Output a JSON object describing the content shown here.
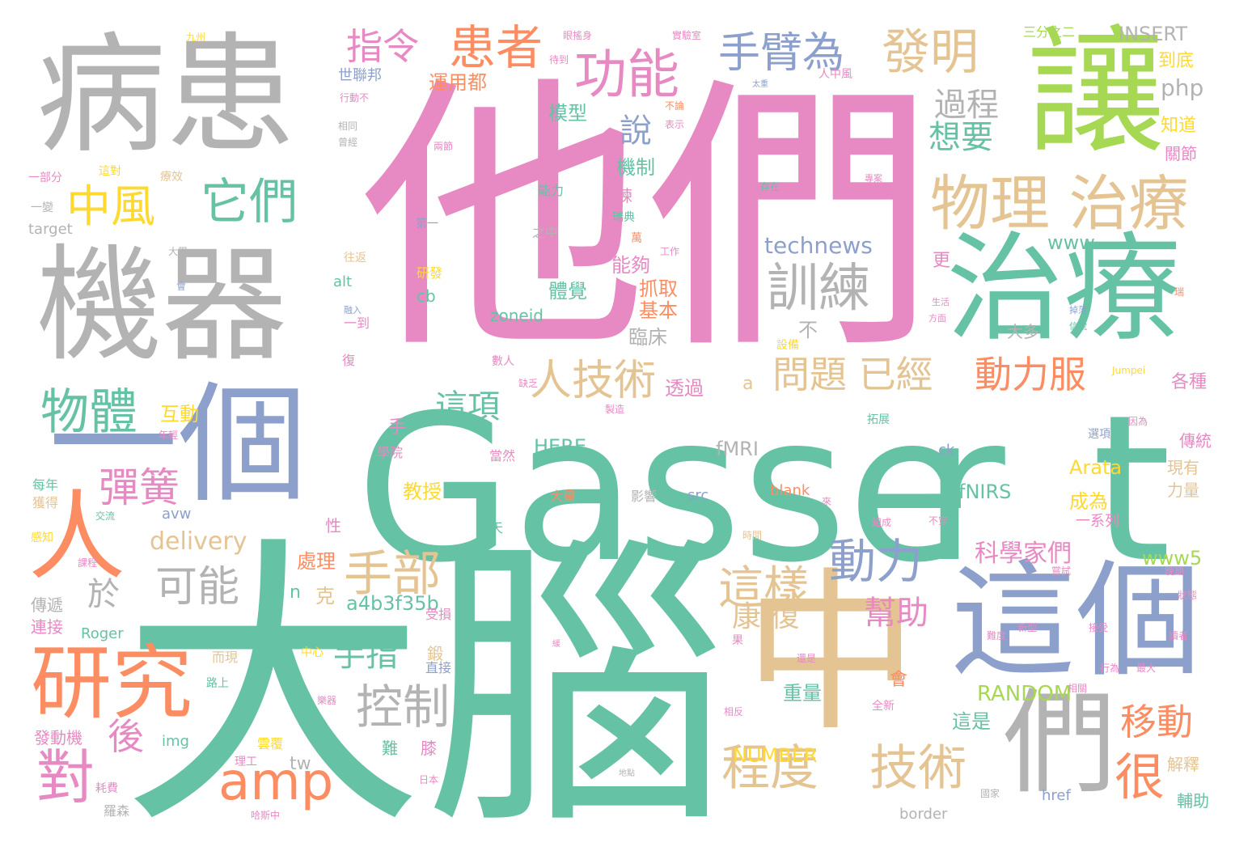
{
  "palette": {
    "teal": "#66c2a5",
    "pink": "#e78ac3",
    "gray": "#b3b3b3",
    "blue": "#8da0cb",
    "orange": "#fc8d62",
    "tan": "#e5c494",
    "green": "#a6d854",
    "yellow": "#ffd92f"
  },
  "words": [
    {
      "text": "Gasse",
      "color": "teal"
    },
    {
      "text": "t",
      "color": "teal"
    },
    {
      "text": "r",
      "color": "teal"
    },
    {
      "text": "他們",
      "color": "pink"
    },
    {
      "text": "大腦",
      "color": "teal"
    },
    {
      "text": "病患",
      "color": "gray"
    },
    {
      "text": "機器",
      "color": "gray"
    },
    {
      "text": "一個",
      "color": "blue"
    },
    {
      "text": "讓",
      "color": "green"
    },
    {
      "text": "治療",
      "color": "teal"
    },
    {
      "text": "這個",
      "color": "blue"
    },
    {
      "text": "中",
      "color": "tan"
    },
    {
      "text": "們",
      "color": "gray"
    },
    {
      "text": "人",
      "color": "orange"
    },
    {
      "text": "研究",
      "color": "orange"
    },
    {
      "text": "物理 治療",
      "color": "tan"
    },
    {
      "text": "發明",
      "color": "tan"
    },
    {
      "text": "患者",
      "color": "orange"
    },
    {
      "text": "功能",
      "color": "pink"
    },
    {
      "text": "手臂為",
      "color": "blue"
    },
    {
      "text": "指令",
      "color": "pink"
    },
    {
      "text": "中風",
      "color": "yellow"
    },
    {
      "text": "它們",
      "color": "teal"
    },
    {
      "text": "訓練",
      "color": "gray"
    },
    {
      "text": "人技術",
      "color": "tan"
    },
    {
      "text": "物體",
      "color": "teal"
    },
    {
      "text": "問題 已經",
      "color": "tan"
    },
    {
      "text": "動力服",
      "color": "orange"
    },
    {
      "text": "手部",
      "color": "tan"
    },
    {
      "text": "可能",
      "color": "gray"
    },
    {
      "text": "動力",
      "color": "blue"
    },
    {
      "text": "這樣",
      "color": "tan"
    },
    {
      "text": "控制",
      "color": "gray"
    },
    {
      "text": "程度",
      "color": "tan"
    },
    {
      "text": "技術",
      "color": "tan"
    },
    {
      "text": "amp",
      "color": "orange"
    },
    {
      "text": "手指",
      "color": "teal"
    },
    {
      "text": "移動",
      "color": "orange"
    },
    {
      "text": "很",
      "color": "orange"
    },
    {
      "text": "對",
      "color": "pink"
    },
    {
      "text": "後",
      "color": "pink"
    },
    {
      "text": "彈簧",
      "color": "pink"
    },
    {
      "text": "於",
      "color": "gray"
    },
    {
      "text": "這項",
      "color": "teal"
    },
    {
      "text": "過程",
      "color": "gray"
    },
    {
      "text": "想要",
      "color": "teal"
    },
    {
      "text": "說",
      "color": "blue"
    },
    {
      "text": "幫助",
      "color": "pink"
    },
    {
      "text": "康 復",
      "color": "tan"
    },
    {
      "text": "科學家們",
      "color": "pink"
    },
    {
      "text": "delivery",
      "color": "tan"
    },
    {
      "text": "INSERT",
      "color": "gray"
    },
    {
      "text": "php",
      "color": "gray"
    },
    {
      "text": "technews",
      "color": "blue"
    },
    {
      "text": "www",
      "color": "teal"
    },
    {
      "text": "www5",
      "color": "green"
    },
    {
      "text": "RANDOM",
      "color": "green"
    },
    {
      "text": "NUMBER",
      "color": "yellow"
    },
    {
      "text": "a4b3f35b",
      "color": "teal"
    },
    {
      "text": "fMRI",
      "color": "gray"
    },
    {
      "text": "fNIRS",
      "color": "teal"
    },
    {
      "text": "Arata",
      "color": "yellow"
    },
    {
      "text": "HERE",
      "color": "teal"
    },
    {
      "text": "zoneid",
      "color": "teal"
    },
    {
      "text": "target",
      "color": "gray"
    },
    {
      "text": "模型",
      "color": "teal"
    },
    {
      "text": "機制",
      "color": "teal"
    },
    {
      "text": "能夠",
      "color": "pink"
    },
    {
      "text": "體覺",
      "color": "teal"
    },
    {
      "text": "抓取",
      "color": "orange"
    },
    {
      "text": "基本",
      "color": "orange"
    },
    {
      "text": "臨床",
      "color": "gray"
    },
    {
      "text": "透過",
      "color": "pink"
    },
    {
      "text": "互動",
      "color": "yellow"
    },
    {
      "text": "教授",
      "color": "yellow"
    },
    {
      "text": "成為",
      "color": "yellow"
    },
    {
      "text": "處理",
      "color": "orange"
    },
    {
      "text": "重量",
      "color": "teal"
    },
    {
      "text": "這是",
      "color": "teal"
    },
    {
      "text": "運用都",
      "color": "orange"
    },
    {
      "text": "世聯邦",
      "color": "blue"
    },
    {
      "text": "三分之二",
      "color": "green"
    },
    {
      "text": "到底",
      "color": "yellow"
    },
    {
      "text": "知道",
      "color": "yellow"
    },
    {
      "text": "關節",
      "color": "pink"
    },
    {
      "text": "各種",
      "color": "pink"
    },
    {
      "text": "傳統",
      "color": "pink"
    },
    {
      "text": "現有",
      "color": "tan"
    },
    {
      "text": "力量",
      "color": "tan"
    },
    {
      "text": "一系列",
      "color": "pink"
    },
    {
      "text": "解釋",
      "color": "tan"
    },
    {
      "text": "輔助",
      "color": "teal"
    },
    {
      "text": "發動機",
      "color": "pink"
    },
    {
      "text": "img",
      "color": "teal"
    },
    {
      "text": "tw",
      "color": "gray"
    },
    {
      "text": "cb",
      "color": "teal"
    },
    {
      "text": "alt",
      "color": "teal"
    },
    {
      "text": "src",
      "color": "blue"
    },
    {
      "text": "blank",
      "color": "orange"
    },
    {
      "text": "ck",
      "color": "blue"
    },
    {
      "text": "href",
      "color": "blue"
    },
    {
      "text": "border",
      "color": "gray"
    },
    {
      "text": "avw",
      "color": "blue"
    },
    {
      "text": "Roger",
      "color": "teal"
    },
    {
      "text": "a",
      "color": "tan"
    },
    {
      "text": "n",
      "color": "teal"
    },
    {
      "text": "克",
      "color": "tan"
    },
    {
      "text": "不",
      "color": "gray"
    },
    {
      "text": "手",
      "color": "pink"
    },
    {
      "text": "更",
      "color": "pink"
    },
    {
      "text": "會",
      "color": "orange"
    },
    {
      "text": "大多",
      "color": "gray"
    },
    {
      "text": "傳遞",
      "color": "gray"
    },
    {
      "text": "連接",
      "color": "pink"
    },
    {
      "text": "每年",
      "color": "teal"
    },
    {
      "text": "獲得",
      "color": "tan"
    },
    {
      "text": "學院",
      "color": "pink"
    },
    {
      "text": "當然",
      "color": "pink"
    },
    {
      "text": "大量",
      "color": "orange"
    },
    {
      "text": "影響",
      "color": "gray"
    },
    {
      "text": "每天",
      "color": "teal"
    },
    {
      "text": "受損",
      "color": "pink"
    },
    {
      "text": "直接",
      "color": "blue"
    },
    {
      "text": "而現",
      "color": "tan"
    },
    {
      "text": "中心",
      "color": "yellow"
    },
    {
      "text": "膝",
      "color": "pink"
    },
    {
      "text": "難",
      "color": "teal"
    },
    {
      "text": "性",
      "color": "pink"
    },
    {
      "text": "鍛",
      "color": "tan"
    },
    {
      "text": "練",
      "color": "pink"
    },
    {
      "text": "一到",
      "color": "pink"
    },
    {
      "text": "研發",
      "color": "yellow"
    },
    {
      "text": "往返",
      "color": "tan"
    },
    {
      "text": "一部分",
      "color": "pink"
    },
    {
      "text": "這對",
      "color": "yellow"
    },
    {
      "text": "療效",
      "color": "tan"
    },
    {
      "text": "九州",
      "color": "yellow"
    },
    {
      "text": "瑞典",
      "color": "teal"
    },
    {
      "text": "之中",
      "color": "gray"
    },
    {
      "text": "能力",
      "color": "teal"
    },
    {
      "text": "設備",
      "color": "yellow"
    },
    {
      "text": "拓展",
      "color": "teal"
    },
    {
      "text": "存在",
      "color": "teal"
    },
    {
      "text": "選項",
      "color": "blue"
    },
    {
      "text": "因為",
      "color": "pink"
    },
    {
      "text": "全新",
      "color": "pink"
    },
    {
      "text": "相反",
      "color": "pink"
    },
    {
      "text": "時間",
      "color": "tan"
    },
    {
      "text": "組成",
      "color": "pink"
    },
    {
      "text": "理工",
      "color": "pink"
    },
    {
      "text": "日本",
      "color": "pink"
    },
    {
      "text": "雲覆",
      "color": "yellow"
    },
    {
      "text": "復",
      "color": "pink"
    },
    {
      "text": "數人",
      "color": "pink"
    },
    {
      "text": "第一",
      "color": "blue"
    },
    {
      "text": "Jumpei",
      "color": "yellow"
    },
    {
      "text": "實驗室",
      "color": "pink"
    },
    {
      "text": "眼搖身",
      "color": "pink"
    },
    {
      "text": "待到",
      "color": "pink"
    },
    {
      "text": "人中風",
      "color": "pink"
    },
    {
      "text": "太重",
      "color": "blue"
    },
    {
      "text": "不論",
      "color": "orange"
    },
    {
      "text": "表示",
      "color": "pink"
    },
    {
      "text": "工作",
      "color": "pink"
    },
    {
      "text": "大學",
      "color": "gray"
    },
    {
      "text": "會",
      "color": "blue"
    },
    {
      "text": "融入",
      "color": "blue"
    },
    {
      "text": "生活",
      "color": "pink"
    },
    {
      "text": "方面",
      "color": "pink"
    },
    {
      "text": "掉落",
      "color": "blue"
    },
    {
      "text": "信號",
      "color": "teal"
    },
    {
      "text": "一變",
      "color": "gray"
    },
    {
      "text": "兩節",
      "color": "pink"
    },
    {
      "text": "專案",
      "color": "pink"
    },
    {
      "text": "萬",
      "color": "orange"
    },
    {
      "text": "緩",
      "color": "pink"
    },
    {
      "text": "果",
      "color": "pink"
    },
    {
      "text": "來",
      "color": "pink"
    },
    {
      "text": "瑞",
      "color": "orange"
    },
    {
      "text": "路上",
      "color": "teal"
    },
    {
      "text": "耗費",
      "color": "pink"
    },
    {
      "text": "羅森",
      "color": "gray"
    },
    {
      "text": "哈斯中",
      "color": "pink"
    },
    {
      "text": "國家",
      "color": "gray"
    },
    {
      "text": "感知",
      "color": "yellow"
    },
    {
      "text": "交流",
      "color": "teal"
    },
    {
      "text": "課程",
      "color": "pink"
    },
    {
      "text": "不穿",
      "color": "pink"
    },
    {
      "text": "樂器",
      "color": "pink"
    },
    {
      "text": "還是",
      "color": "pink"
    },
    {
      "text": "年輕",
      "color": "pink"
    },
    {
      "text": "製造",
      "color": "pink"
    },
    {
      "text": "缺乏",
      "color": "pink"
    },
    {
      "text": "嘗試",
      "color": "pink"
    },
    {
      "text": "讀者",
      "color": "pink"
    },
    {
      "text": "相同",
      "color": "gray"
    },
    {
      "text": "曾經",
      "color": "gray"
    },
    {
      "text": "新型",
      "color": "pink"
    },
    {
      "text": "難度",
      "color": "pink"
    },
    {
      "text": "接受",
      "color": "pink"
    },
    {
      "text": "行為",
      "color": "pink"
    },
    {
      "text": "最大",
      "color": "pink"
    },
    {
      "text": "相關",
      "color": "pink"
    },
    {
      "text": "晚期",
      "color": "pink"
    },
    {
      "text": "狀態",
      "color": "pink"
    },
    {
      "text": "地點",
      "color": "gray"
    },
    {
      "text": "行動不",
      "color": "pink"
    }
  ]
}
